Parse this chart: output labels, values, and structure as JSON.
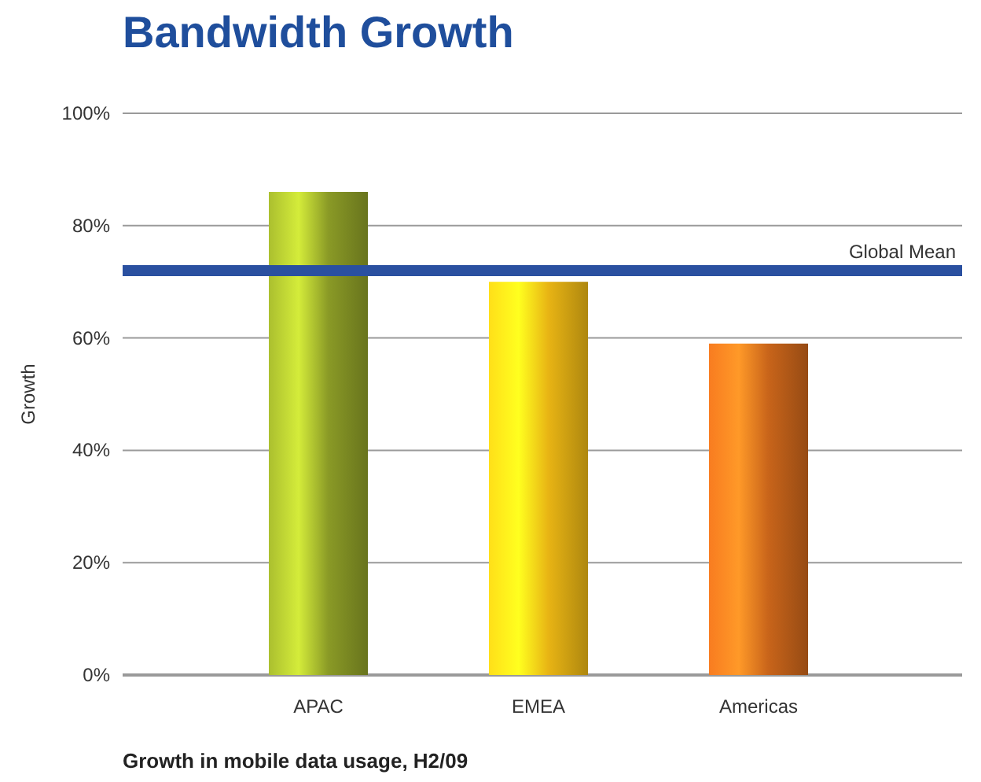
{
  "chart_data": {
    "type": "bar",
    "title": "Bandwidth Growth",
    "ylabel": "Growth",
    "categories": [
      "APAC",
      "EMEA",
      "Americas"
    ],
    "values": [
      86,
      70,
      59
    ],
    "colors": [
      "#8a9a26",
      "#e8b414",
      "#c8641a"
    ],
    "ylim": [
      0,
      100
    ],
    "yticks": [
      {
        "value": 0,
        "label": "0%"
      },
      {
        "value": 20,
        "label": "20%"
      },
      {
        "value": 40,
        "label": "40%"
      },
      {
        "value": 60,
        "label": "60%"
      },
      {
        "value": 80,
        "label": "80%"
      },
      {
        "value": 100,
        "label": "100%"
      }
    ],
    "grid": "y",
    "ref_lines": [
      {
        "axis": "y",
        "value": 72,
        "label": "Global Mean",
        "color": "#2a50a0"
      }
    ],
    "annotations": [
      "Growth in mobile data usage, H2/09"
    ]
  }
}
